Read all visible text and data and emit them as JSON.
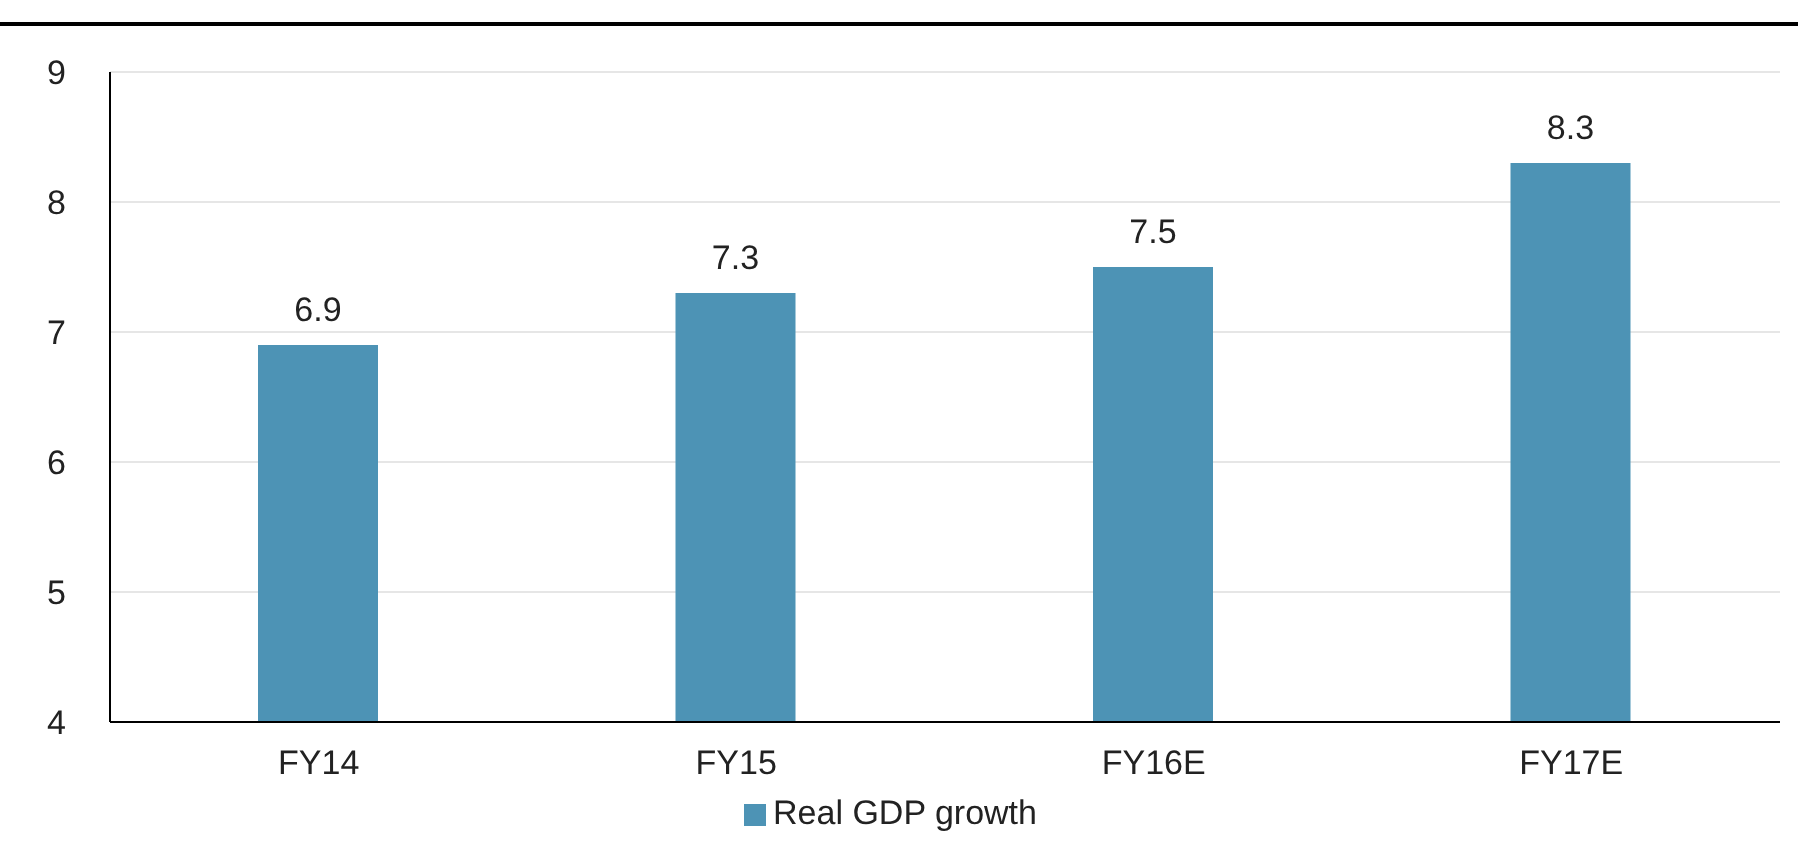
{
  "chart_data": {
    "type": "bar",
    "categories": [
      "FY14",
      "FY15",
      "FY16E",
      "FY17E"
    ],
    "series": [
      {
        "name": "Real GDP growth",
        "color": "#4d93b5",
        "values": [
          6.9,
          7.3,
          7.5,
          8.3
        ]
      }
    ],
    "ylim": [
      4,
      9
    ],
    "yticks": [
      4,
      5,
      6,
      7,
      8,
      9
    ],
    "grid": "y",
    "legend": "bottom",
    "data_labels": true
  }
}
